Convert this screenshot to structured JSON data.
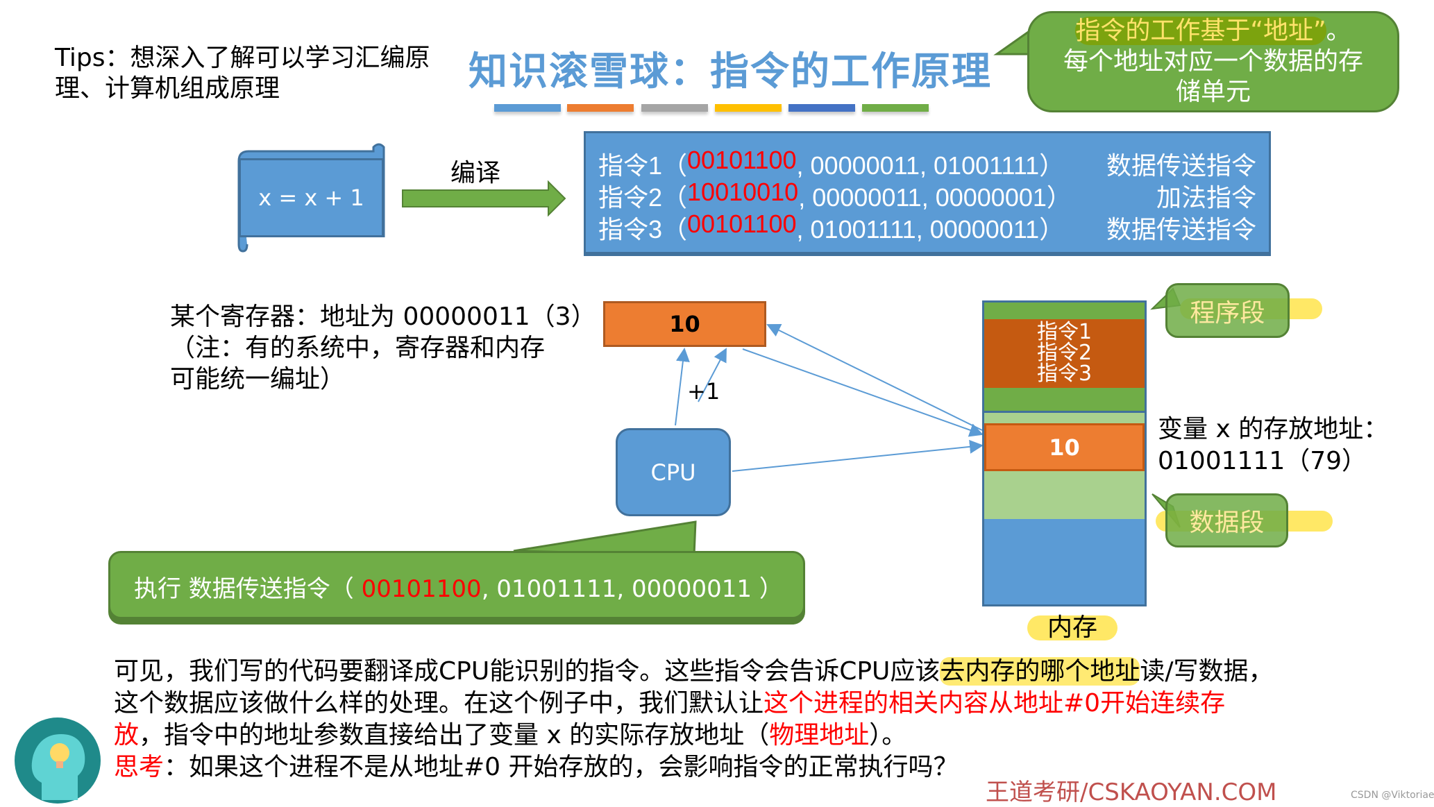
{
  "tips": "Tips：想深入了解可以学习汇编原理、计算机组成原理",
  "title": "知识滚雪球：指令的工作原理",
  "title_bar_colors": [
    "#5b9bd5",
    "#ed7d31",
    "#a5a5a5",
    "#ffc000",
    "#4472c4",
    "#70ad47"
  ],
  "top_callout": {
    "highlight": "指令的工作基于“地址”",
    "rest_line1": "。",
    "line2": "每个地址对应一个数据的存",
    "line3": "储单元"
  },
  "source_code": "x = x + 1",
  "compile_label": "编译",
  "instructions": [
    {
      "name": "指令1（",
      "opcode": "00101100",
      "operands": ", 00000011, 01001111）",
      "type": "数据传送指令"
    },
    {
      "name": "指令2（",
      "opcode": "10010010",
      "operands": ", 00000011, 00000001）",
      "type": "加法指令"
    },
    {
      "name": "指令3（",
      "opcode": "00101100",
      "operands": ", 01001111, 00000011）",
      "type": "数据传送指令"
    }
  ],
  "register": {
    "line1": "某个寄存器：地址为 00000011（3）",
    "line2": "（注：有的系统中，寄存器和内存",
    "line3": "可能统一编址）",
    "value": "10"
  },
  "cpu_label": "CPU",
  "plus_one": "+1",
  "exec_callout": {
    "prefix": "执行 数据传送指令（ ",
    "opcode": "00101100",
    "rest": ", 01001111, 00000011 ）"
  },
  "memory": {
    "instr_rows": [
      "指令1",
      "指令2",
      "指令3"
    ],
    "var_value": "10",
    "label": "内存",
    "program_segment": "程序段",
    "data_segment": "数据段",
    "var_addr_line1": "变量 x 的存放地址：",
    "var_addr_line2": "01001111（79）"
  },
  "paragraph": {
    "l1a": "可见，我们写的代码要翻译成CPU能识别的指令。这些指令会告诉CPU应该",
    "l1b": "去内存的哪个地址",
    "l1c": "读/写数据，",
    "l2a": "这个数据应该做什么样的处理。在这个例子中，我们默认让",
    "l2b": "这个进程的相关内容从地址#0开始连续存",
    "l3a": "放",
    "l3b": "，指令中的地址参数直接给出了变量 x 的实际存放地址（",
    "l3c": "物理地址",
    "l3d": "）。",
    "l4a": "思考",
    "l4b": "：如果这个进程不是从地址#0 开始存放的，会影响指令的正常执行吗？"
  },
  "brand": "王道考研/CSKAOYAN.COM",
  "watermark": "CSDN @Viktoriae"
}
